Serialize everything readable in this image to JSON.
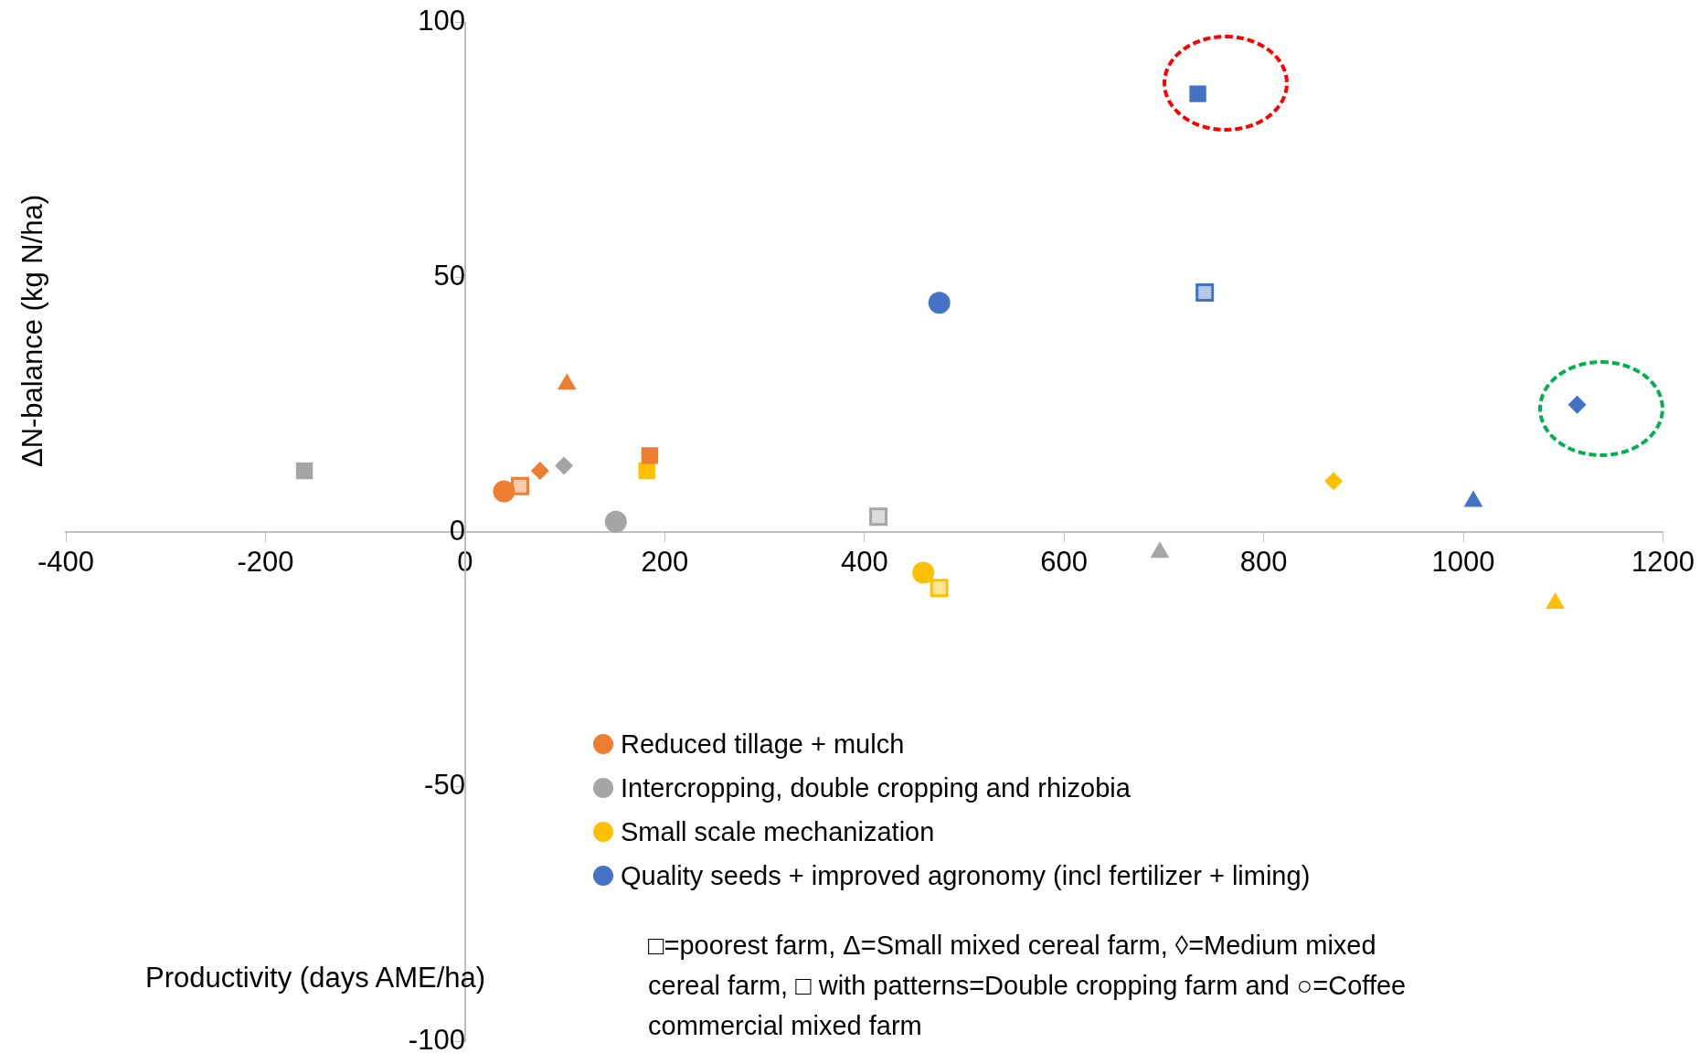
{
  "chart_data": {
    "type": "scatter",
    "xlabel": "Productivity (days AME/ha)",
    "ylabel": "ΔN-balance (kg N/ha)",
    "xlim": [
      -400,
      1200
    ],
    "xticks": [
      -400,
      -200,
      0,
      200,
      400,
      600,
      800,
      1000,
      1200
    ],
    "ylim": [
      -100,
      100
    ],
    "yticks": [
      -100,
      -50,
      0,
      50,
      100
    ],
    "grid": false,
    "legend": "bottom",
    "series": [
      {
        "name": "Reduced tillage + mulch",
        "color": "#ed7d31",
        "x": [
          39,
          55,
          75,
          102,
          185
        ],
        "values": [
          8,
          9,
          12,
          29,
          15
        ],
        "marker": [
          "circle",
          "hatched-square",
          "diamond",
          "triangle",
          "square"
        ]
      },
      {
        "name": "Intercropping, double cropping and rhizobia",
        "color": "#a5a5a5",
        "x": [
          -161,
          99,
          151,
          414,
          696
        ],
        "values": [
          12,
          13,
          2,
          3,
          -4
        ],
        "marker": [
          "square",
          "diamond",
          "circle",
          "hatched-square",
          "triangle"
        ]
      },
      {
        "name": "Small scale mechanization",
        "color": "#ffc000",
        "x": [
          182,
          459,
          475,
          870,
          1092
        ],
        "values": [
          12,
          -8,
          -11,
          10,
          -14
        ],
        "marker": [
          "square",
          "circle",
          "hatched-square",
          "diamond",
          "triangle"
        ]
      },
      {
        "name": "Quality seeds + improved agronomy (incl fertilizer + liming)",
        "color": "#4472c4",
        "x": [
          475,
          734,
          741,
          1114,
          1010
        ],
        "values": [
          45,
          86,
          47,
          25,
          6
        ],
        "marker": [
          "circle",
          "square",
          "hatched-square",
          "diamond",
          "triangle"
        ]
      }
    ],
    "annotations": [
      "□=poorest farm, Δ=Small mixed cereal farm, ◊=Medium mixed cereal farm, □ with patterns=Double cropping farm and ○=Coffee commercial mixed farm"
    ]
  }
}
